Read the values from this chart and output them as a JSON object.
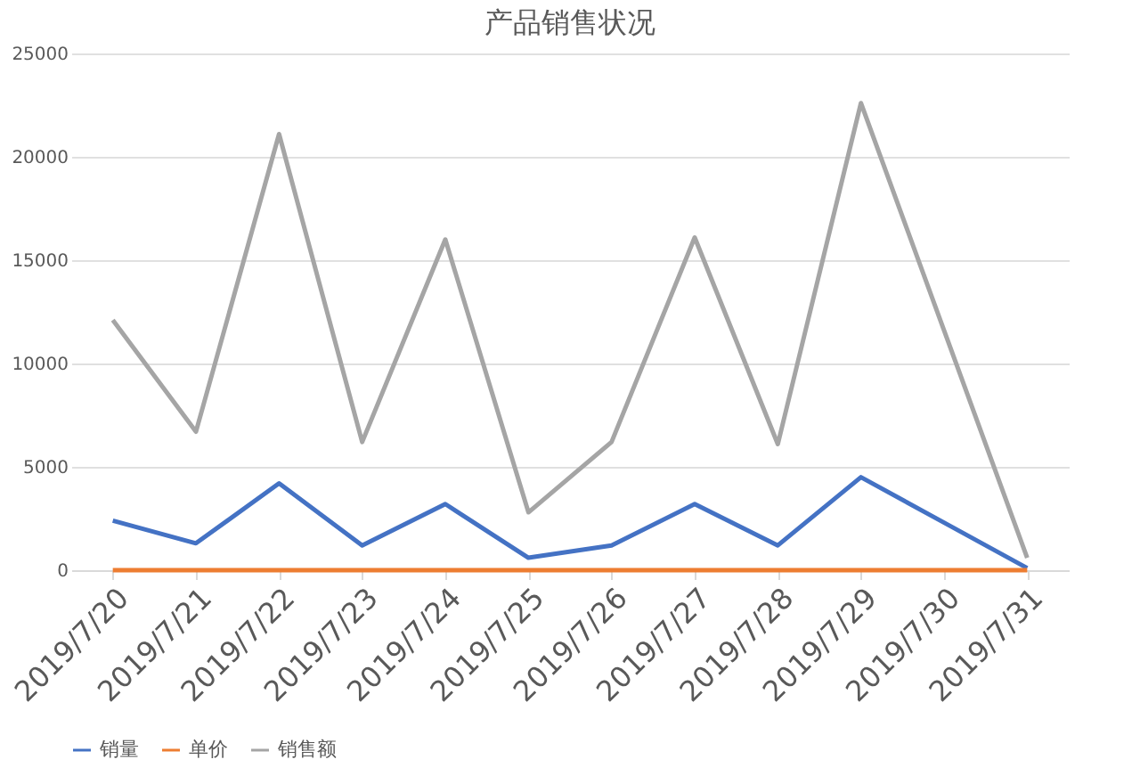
{
  "chart_data": {
    "type": "line",
    "title": "产品销售状况",
    "categories": [
      "2019/7/20",
      "2019/7/21",
      "2019/7/22",
      "2019/7/23",
      "2019/7/24",
      "2019/7/25",
      "2019/7/26",
      "2019/7/27",
      "2019/7/28",
      "2019/7/29",
      "2019/7/30",
      "2019/7/31"
    ],
    "series": [
      {
        "name": "销量",
        "color": "#4472c4",
        "values": [
          2400,
          1300,
          4200,
          1200,
          3200,
          600,
          1200,
          3200,
          1200,
          4500,
          2300,
          100
        ]
      },
      {
        "name": "单价",
        "color": "#ed7d31",
        "values": [
          0,
          0,
          0,
          0,
          0,
          0,
          0,
          0,
          0,
          0,
          0,
          0
        ]
      },
      {
        "name": "销售额",
        "color": "#a5a5a5",
        "values": [
          12100,
          6700,
          21100,
          6200,
          16000,
          2800,
          6200,
          16100,
          6100,
          22600,
          11600,
          600
        ]
      }
    ],
    "ylim": [
      0,
      25000
    ],
    "yticks": [
      0,
      5000,
      10000,
      15000,
      20000,
      25000
    ],
    "grid": "y",
    "legend": "bottom"
  }
}
